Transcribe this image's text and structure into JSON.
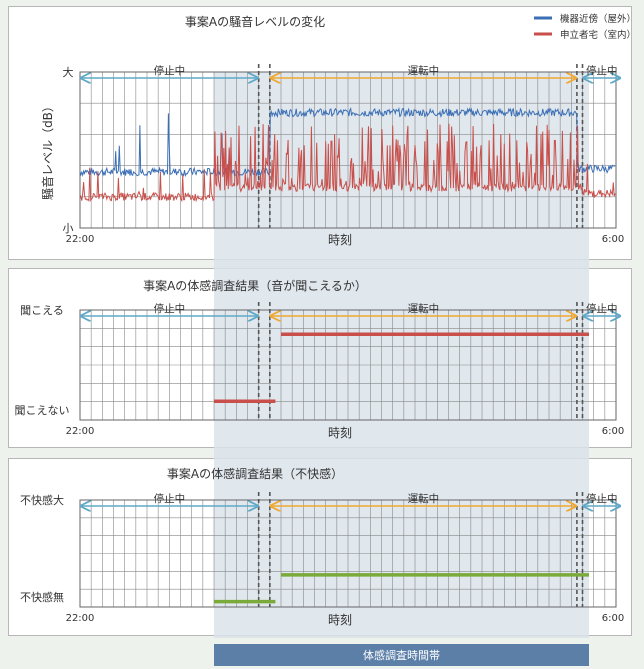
{
  "colors": {
    "outdoor": "#3b6fb6",
    "indoor": "#c94f4a",
    "stopped_arrow": "#5fa8c8",
    "running_arrow": "#f0a830",
    "discomfort": "#7aaa3a",
    "band": "#5c7fa8",
    "band_fill": "#dbe3ea",
    "grid": "#888888",
    "background": "#eef2ec"
  },
  "band_label": "体感調査時間帯",
  "chart_data": [
    {
      "type": "line",
      "title": "事案Aの騒音レベルの変化",
      "xlabel": "時刻",
      "ylabel": "騒音レベル（dB）",
      "x_ticks": [
        "22:00",
        "6:00"
      ],
      "y_ticks": [
        "小",
        "大"
      ],
      "ylim": [
        "小",
        "大"
      ],
      "grid": true,
      "legend_position": "top-right",
      "periods": [
        {
          "label": "停止中",
          "start": "22:00",
          "end": "0:40"
        },
        {
          "label": "運転中",
          "start": "0:50",
          "end": "5:25"
        },
        {
          "label": "停止中",
          "start": "5:30",
          "end": "6:00"
        }
      ],
      "series": [
        {
          "name": "機器近傍（屋外）",
          "segments": [
            {
              "start": "22:00",
              "end": "0:50",
              "level": 0.36
            },
            {
              "start": "0:50",
              "end": "5:25",
              "level": 0.74
            },
            {
              "start": "5:25",
              "end": "6:00",
              "level": 0.38
            }
          ]
        },
        {
          "name": "申立者宅（室内）",
          "segments": [
            {
              "start": "22:00",
              "end": "0:00",
              "level": 0.2
            },
            {
              "start": "0:00",
              "end": "5:30",
              "level": 0.26
            },
            {
              "start": "5:30",
              "end": "6:00",
              "level": 0.22
            }
          ]
        }
      ]
    },
    {
      "type": "line",
      "title": "事案Aの体感調査結果（音が聞こえるか）",
      "xlabel": "時刻",
      "x_ticks": [
        "22:00",
        "6:00"
      ],
      "y_ticks": [
        "聞こえない",
        "聞こえる"
      ],
      "grid": true,
      "periods": [
        {
          "label": "停止中",
          "start": "22:00",
          "end": "0:40"
        },
        {
          "label": "運転中",
          "start": "0:50",
          "end": "5:25"
        },
        {
          "label": "停止中",
          "start": "5:30",
          "end": "6:00"
        }
      ],
      "series": [
        {
          "segments": [
            {
              "start": "0:00",
              "end": "0:55",
              "value": "聞こえない"
            },
            {
              "start": "1:00",
              "end": "6:00",
              "value": "聞こえる"
            }
          ]
        }
      ]
    },
    {
      "type": "line",
      "title": "事案Aの体感調査結果（不快感）",
      "xlabel": "時刻",
      "x_ticks": [
        "22:00",
        "6:00"
      ],
      "y_ticks": [
        "不快感無",
        "不快感大"
      ],
      "grid": true,
      "periods": [
        {
          "label": "停止中",
          "start": "22:00",
          "end": "0:40"
        },
        {
          "label": "運転中",
          "start": "0:50",
          "end": "5:25"
        },
        {
          "label": "停止中",
          "start": "5:30",
          "end": "6:00"
        }
      ],
      "series": [
        {
          "segments": [
            {
              "start": "0:00",
              "end": "0:55",
              "level": 0.05
            },
            {
              "start": "1:00",
              "end": "6:00",
              "level": 0.3
            }
          ]
        }
      ]
    }
  ]
}
